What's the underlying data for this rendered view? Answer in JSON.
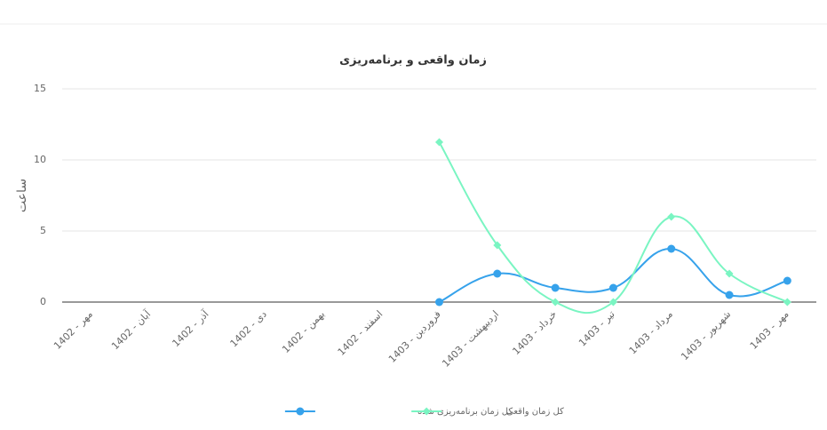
{
  "chart_data": {
    "type": "line",
    "title": "زمان واقعی و برنامه‌ریزی",
    "y_label": "ساعت",
    "categories": [
      "مهر - 1402",
      "آبان - 1402",
      "آذر - 1402",
      "دی - 1402",
      "بهمن - 1402",
      "اسفند - 1402",
      "فروردین - 1403",
      "اردیبهشت - 1403",
      "خرداد - 1403",
      "تیر - 1403",
      "مرداد - 1403",
      "شهریور - 1403",
      "مهر - 1403"
    ],
    "series": [
      {
        "name": "کل زمان برنامه‌ریزی شده",
        "color": "#36a2eb",
        "marker": "circle",
        "values": [
          null,
          null,
          null,
          null,
          null,
          null,
          0,
          2,
          1,
          1,
          3.75,
          0.5,
          1.5
        ]
      },
      {
        "name": "کل زمان واقعی",
        "color": "#7af5c2",
        "marker": "diamond",
        "values": [
          null,
          null,
          null,
          null,
          null,
          null,
          11.25,
          4,
          0,
          0,
          6,
          2,
          0
        ]
      }
    ],
    "ylim": [
      0,
      15
    ],
    "yticks": [
      0,
      5,
      10,
      15
    ],
    "grid": true,
    "legend": "bottom"
  }
}
